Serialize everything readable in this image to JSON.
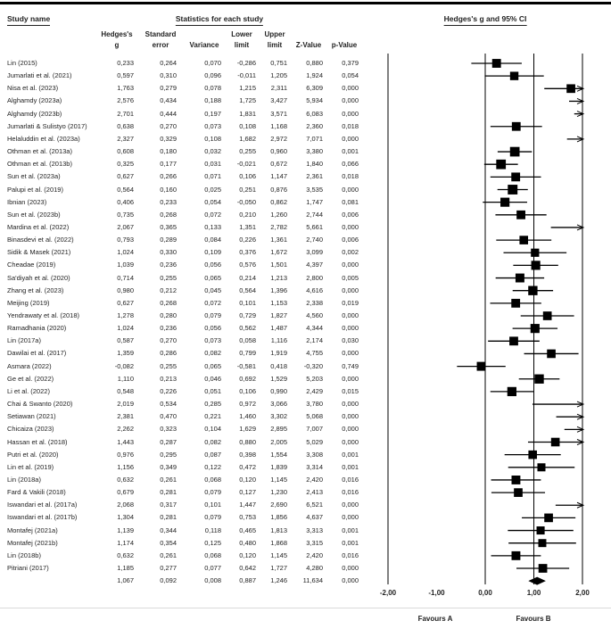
{
  "header": {
    "study_name_title": "Study name",
    "stats_title": "Statistics for each study",
    "plot_title": "Hedges's g and 95% CI",
    "columns": [
      [
        "Hedges's",
        "g"
      ],
      [
        "Standard",
        "error"
      ],
      [
        "",
        "Variance"
      ],
      [
        "Lower",
        "limit"
      ],
      [
        "Upper",
        "limit"
      ],
      [
        "",
        "Z-Value"
      ],
      [
        "",
        "p-Value"
      ]
    ]
  },
  "chart_data": {
    "type": "forest",
    "effect_measure": "Hedges's g",
    "xlim": [
      -2,
      2
    ],
    "axis": {
      "tick_values": [
        -2,
        -1,
        0,
        1,
        2
      ],
      "tick_labels": [
        "-2,00",
        "-1,00",
        "0,00",
        "1,00",
        "2,00"
      ],
      "gridlines_at": [
        -2,
        0,
        1,
        2
      ]
    },
    "footer": {
      "favours_left": "Favours A",
      "favours_right": "Favours B"
    },
    "studies": [
      {
        "name": "Lin (2015)",
        "values": [
          "0,233",
          "0,264",
          "0,070",
          "-0,286",
          "0,751",
          "0,880",
          "0,379"
        ]
      },
      {
        "name": "Jumarlati et al. (2021)",
        "values": [
          "0,597",
          "0,310",
          "0,096",
          "-0,011",
          "1,205",
          "1,924",
          "0,054"
        ]
      },
      {
        "name": "Nisa et al. (2023)",
        "values": [
          "1,763",
          "0,279",
          "0,078",
          "1,215",
          "2,311",
          "6,309",
          "0,000"
        ]
      },
      {
        "name": "Alghamdy (2023a)",
        "values": [
          "2,576",
          "0,434",
          "0,188",
          "1,725",
          "3,427",
          "5,934",
          "0,000"
        ]
      },
      {
        "name": "Alghamdy (2023b)",
        "values": [
          "2,701",
          "0,444",
          "0,197",
          "1,831",
          "3,571",
          "6,083",
          "0,000"
        ]
      },
      {
        "name": "Jumarlati & Sulistyo (2017)",
        "values": [
          "0,638",
          "0,270",
          "0,073",
          "0,108",
          "1,168",
          "2,360",
          "0,018"
        ]
      },
      {
        "name": "Helaluddin et al. (2023a)",
        "values": [
          "2,327",
          "0,329",
          "0,108",
          "1,682",
          "2,972",
          "7,071",
          "0,000"
        ]
      },
      {
        "name": "Othman et al. (2013a)",
        "values": [
          "0,608",
          "0,180",
          "0,032",
          "0,255",
          "0,960",
          "3,380",
          "0,001"
        ]
      },
      {
        "name": "Othman et al. (2013b)",
        "values": [
          "0,325",
          "0,177",
          "0,031",
          "-0,021",
          "0,672",
          "1,840",
          "0,066"
        ]
      },
      {
        "name": "Sun et al. (2023a)",
        "values": [
          "0,627",
          "0,266",
          "0,071",
          "0,106",
          "1,147",
          "2,361",
          "0,018"
        ]
      },
      {
        "name": "Palupi et al. (2019)",
        "values": [
          "0,564",
          "0,160",
          "0,025",
          "0,251",
          "0,876",
          "3,535",
          "0,000"
        ]
      },
      {
        "name": "Ibnian (2023)",
        "values": [
          "0,406",
          "0,233",
          "0,054",
          "-0,050",
          "0,862",
          "1,747",
          "0,081"
        ]
      },
      {
        "name": "Sun et al. (2023b)",
        "values": [
          "0,735",
          "0,268",
          "0,072",
          "0,210",
          "1,260",
          "2,744",
          "0,006"
        ]
      },
      {
        "name": "Mardina et al. (2022)",
        "values": [
          "2,067",
          "0,365",
          "0,133",
          "1,351",
          "2,782",
          "5,661",
          "0,000"
        ]
      },
      {
        "name": "Binasdevi et al. (2022)",
        "values": [
          "0,793",
          "0,289",
          "0,084",
          "0,226",
          "1,361",
          "2,740",
          "0,006"
        ]
      },
      {
        "name": "Sidik & Masek (2021)",
        "values": [
          "1,024",
          "0,330",
          "0,109",
          "0,376",
          "1,672",
          "3,099",
          "0,002"
        ]
      },
      {
        "name": "Cheadae (2019)",
        "values": [
          "1,039",
          "0,236",
          "0,056",
          "0,576",
          "1,501",
          "4,397",
          "0,000"
        ]
      },
      {
        "name": "Sa'diyah et al. (2020)",
        "values": [
          "0,714",
          "0,255",
          "0,065",
          "0,214",
          "1,213",
          "2,800",
          "0,005"
        ]
      },
      {
        "name": "Zhang et al. (2023)",
        "values": [
          "0,980",
          "0,212",
          "0,045",
          "0,564",
          "1,396",
          "4,616",
          "0,000"
        ]
      },
      {
        "name": "Meijing (2019)",
        "values": [
          "0,627",
          "0,268",
          "0,072",
          "0,101",
          "1,153",
          "2,338",
          "0,019"
        ]
      },
      {
        "name": "Yendrawaty et al. (2018)",
        "values": [
          "1,278",
          "0,280",
          "0,079",
          "0,729",
          "1,827",
          "4,560",
          "0,000"
        ]
      },
      {
        "name": "Ramadhania (2020)",
        "values": [
          "1,024",
          "0,236",
          "0,056",
          "0,562",
          "1,487",
          "4,344",
          "0,000"
        ]
      },
      {
        "name": "Lin (2017a)",
        "values": [
          "0,587",
          "0,270",
          "0,073",
          "0,058",
          "1,116",
          "2,174",
          "0,030"
        ]
      },
      {
        "name": "Dawilai et al. (2017)",
        "values": [
          "1,359",
          "0,286",
          "0,082",
          "0,799",
          "1,919",
          "4,755",
          "0,000"
        ]
      },
      {
        "name": "Asmara (2022)",
        "values": [
          "-0,082",
          "0,255",
          "0,065",
          "-0,581",
          "0,418",
          "-0,320",
          "0,749"
        ]
      },
      {
        "name": "Ge et al. (2022)",
        "values": [
          "1,110",
          "0,213",
          "0,046",
          "0,692",
          "1,529",
          "5,203",
          "0,000"
        ]
      },
      {
        "name": "Li et al. (2022)",
        "values": [
          "0,548",
          "0,226",
          "0,051",
          "0,106",
          "0,990",
          "2,429",
          "0,015"
        ]
      },
      {
        "name": "Chai & Swanto (2020)",
        "values": [
          "2,019",
          "0,534",
          "0,285",
          "0,972",
          "3,066",
          "3,780",
          "0,000"
        ]
      },
      {
        "name": "Setiawan (2021)",
        "values": [
          "2,381",
          "0,470",
          "0,221",
          "1,460",
          "3,302",
          "5,068",
          "0,000"
        ]
      },
      {
        "name": "Chicaiza (2023)",
        "values": [
          "2,262",
          "0,323",
          "0,104",
          "1,629",
          "2,895",
          "7,007",
          "0,000"
        ]
      },
      {
        "name": "Hassan et al. (2018)",
        "values": [
          "1,443",
          "0,287",
          "0,082",
          "0,880",
          "2,005",
          "5,029",
          "0,000"
        ]
      },
      {
        "name": "Putri et al. (2020)",
        "values": [
          "0,976",
          "0,295",
          "0,087",
          "0,398",
          "1,554",
          "3,308",
          "0,001"
        ]
      },
      {
        "name": "Lin et al. (2019)",
        "values": [
          "1,156",
          "0,349",
          "0,122",
          "0,472",
          "1,839",
          "3,314",
          "0,001"
        ]
      },
      {
        "name": "Lin (2018a)",
        "values": [
          "0,632",
          "0,261",
          "0,068",
          "0,120",
          "1,145",
          "2,420",
          "0,016"
        ]
      },
      {
        "name": "Fard & Vakili (2018)",
        "values": [
          "0,679",
          "0,281",
          "0,079",
          "0,127",
          "1,230",
          "2,413",
          "0,016"
        ]
      },
      {
        "name": "Iswandari et al. (2017a)",
        "values": [
          "2,068",
          "0,317",
          "0,101",
          "1,447",
          "2,690",
          "6,521",
          "0,000"
        ]
      },
      {
        "name": "Iswandari et al. (2017b)",
        "values": [
          "1,304",
          "0,281",
          "0,079",
          "0,753",
          "1,856",
          "4,637",
          "0,000"
        ]
      },
      {
        "name": "Montafej (2021a)",
        "values": [
          "1,139",
          "0,344",
          "0,118",
          "0,465",
          "1,813",
          "3,313",
          "0,001"
        ]
      },
      {
        "name": "Montafej (2021b)",
        "values": [
          "1,174",
          "0,354",
          "0,125",
          "0,480",
          "1,868",
          "3,315",
          "0,001"
        ]
      },
      {
        "name": "Lin (2018b)",
        "values": [
          "0,632",
          "0,261",
          "0,068",
          "0,120",
          "1,145",
          "2,420",
          "0,016"
        ]
      },
      {
        "name": "Pitriani (2017)",
        "values": [
          "1,185",
          "0,277",
          "0,077",
          "0,642",
          "1,727",
          "4,280",
          "0,000"
        ]
      }
    ],
    "overall": {
      "name": "",
      "values": [
        "1,067",
        "0,092",
        "0,008",
        "0,887",
        "1,246",
        "11,634",
        "0,000"
      ]
    }
  }
}
